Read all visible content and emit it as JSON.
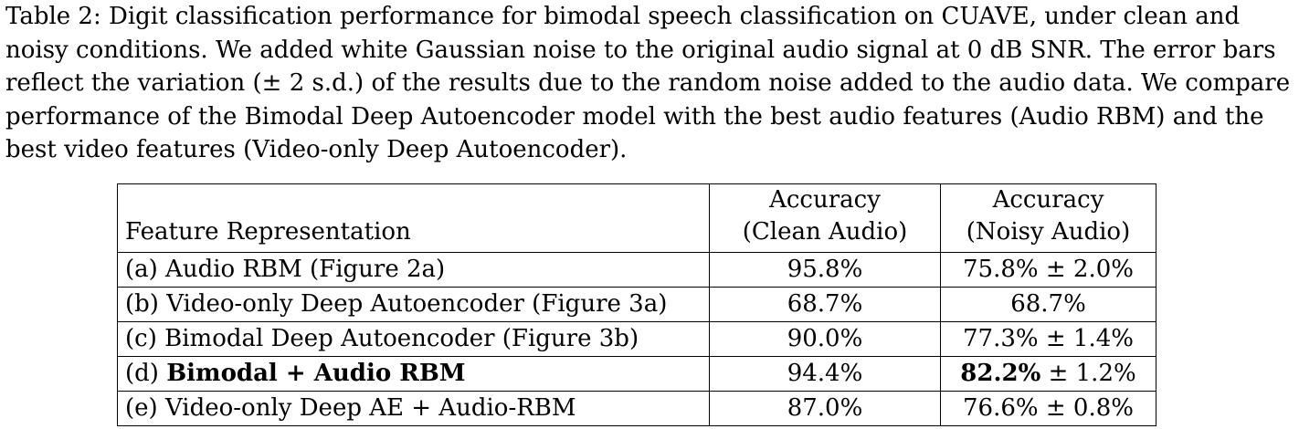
{
  "caption": {
    "line1": "Table 2: Digit classification performance for bimodal speech classification on CUAVE, under clean and",
    "line2": "noisy conditions. We added white Gaussian noise to the original audio signal at 0 dB SNR. The error bars",
    "line3": "reflect the variation (± 2 s.d.) of the results due to the random noise added to the audio data. We compare",
    "line4": "performance of the Bimodal Deep Autoencoder model with the best audio features (Audio RBM) and the",
    "line5": "best video features (Video-only Deep Autoencoder)."
  },
  "table": {
    "header": {
      "feature": "Feature Representation",
      "clean_line1": "Accuracy",
      "clean_line2": "(Clean Audio)",
      "noisy_line1": "Accuracy",
      "noisy_line2": "(Noisy Audio)"
    },
    "rows": [
      {
        "prefix": "(a) Audio RBM (Figure 2a)",
        "feature_bold": "",
        "clean": "95.8%",
        "clean_bold": true,
        "noisy_main": "75.8%",
        "noisy_rest": " ± 2.0%"
      },
      {
        "prefix": "(b) Video-only Deep Autoencoder (Figure 3a)",
        "feature_bold": "",
        "clean": "68.7%",
        "noisy_main": "68.7%",
        "noisy_rest": ""
      },
      {
        "prefix": "(c) Bimodal Deep Autoencoder (Figure 3b)",
        "feature_bold": "",
        "clean": "90.0%",
        "noisy_main": "77.3%",
        "noisy_rest": " ± 1.4%"
      },
      {
        "prefix": "(d) ",
        "feature_bold": "Bimodal + Audio RBM",
        "clean": "94.4%",
        "noisy_main": "82.2%",
        "noisy_rest": " ± 1.2%",
        "noisy_bold": true
      },
      {
        "prefix": "(e) Video-only Deep AE + Audio-RBM",
        "feature_bold": "",
        "clean": "87.0%",
        "noisy_main": "76.6%",
        "noisy_rest": " ± 0.8%"
      }
    ]
  }
}
